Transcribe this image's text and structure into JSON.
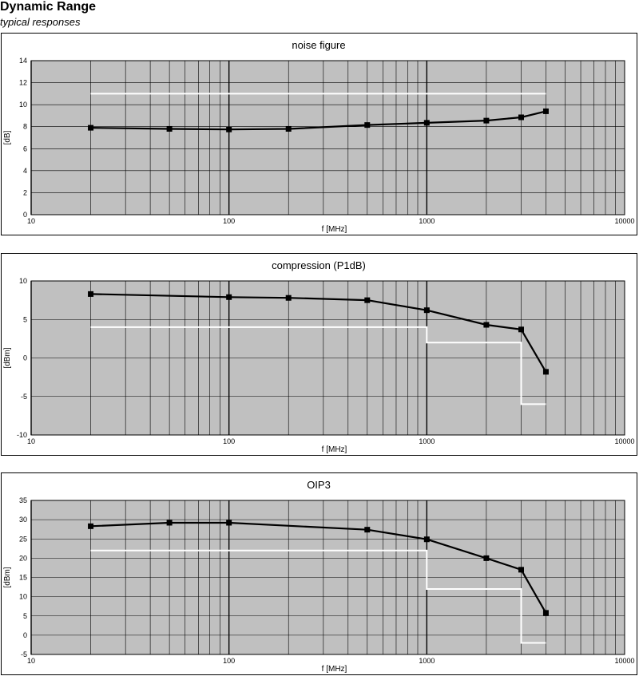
{
  "header": {
    "title": "Dynamic Range",
    "subtitle": "typical responses"
  },
  "colors": {
    "plot_background": "#c0c0c0",
    "measured_line": "#000000",
    "spec_line": "#ffffff",
    "grid": "#000000"
  },
  "chart_data": [
    {
      "type": "line",
      "title": "noise figure",
      "xlabel": "f [MHz]",
      "ylabel": "[dB]",
      "xscale": "log",
      "xlim": [
        10,
        10000
      ],
      "ylim": [
        0,
        14
      ],
      "xticks": [
        10,
        100,
        1000,
        10000
      ],
      "yticks": [
        0,
        2,
        4,
        6,
        8,
        10,
        12,
        14
      ],
      "grid": true,
      "series": [
        {
          "x": [
            20,
            50,
            100,
            200,
            500,
            1000,
            2000,
            3000,
            4000
          ],
          "y": [
            7.9,
            7.8,
            7.75,
            7.8,
            8.15,
            8.35,
            8.55,
            8.85,
            9.4
          ],
          "color": "#000000",
          "markers": true
        },
        {
          "x": [
            20,
            4000
          ],
          "y": [
            11,
            11
          ],
          "color": "#ffffff",
          "markers": false
        }
      ]
    },
    {
      "type": "line",
      "title": "compression (P1dB)",
      "xlabel": "f [MHz]",
      "ylabel": "[dBm]",
      "xscale": "log",
      "xlim": [
        10,
        10000
      ],
      "ylim": [
        -10,
        10
      ],
      "xticks": [
        10,
        100,
        1000,
        10000
      ],
      "yticks": [
        -10,
        -5,
        0,
        5,
        10
      ],
      "grid": true,
      "series": [
        {
          "x": [
            20,
            100,
            200,
            500,
            1000,
            2000,
            3000,
            4000
          ],
          "y": [
            8.3,
            7.9,
            7.8,
            7.5,
            6.2,
            4.3,
            3.7,
            -1.8
          ],
          "color": "#000000",
          "markers": true
        },
        {
          "x": [
            20,
            1000,
            1000,
            3000,
            3000,
            4000
          ],
          "y": [
            4,
            4,
            2,
            2,
            -6,
            -6
          ],
          "color": "#ffffff",
          "markers": false
        }
      ]
    },
    {
      "type": "line",
      "title": "OIP3",
      "xlabel": "f [MHz]",
      "ylabel": "[dBm]",
      "xscale": "log",
      "xlim": [
        10,
        10000
      ],
      "ylim": [
        -5,
        35
      ],
      "xticks": [
        10,
        100,
        1000,
        10000
      ],
      "yticks": [
        -5,
        0,
        5,
        10,
        15,
        20,
        25,
        30,
        35
      ],
      "grid": true,
      "series": [
        {
          "x": [
            20,
            50,
            100,
            500,
            1000,
            2000,
            3000,
            4000
          ],
          "y": [
            28.3,
            29.2,
            29.2,
            27.4,
            24.9,
            20,
            17,
            5.8
          ],
          "color": "#000000",
          "markers": true
        },
        {
          "x": [
            20,
            1000,
            1000,
            3000,
            3000,
            4000
          ],
          "y": [
            22,
            22,
            12,
            12,
            -2,
            -2
          ],
          "color": "#ffffff",
          "markers": false
        }
      ]
    }
  ]
}
